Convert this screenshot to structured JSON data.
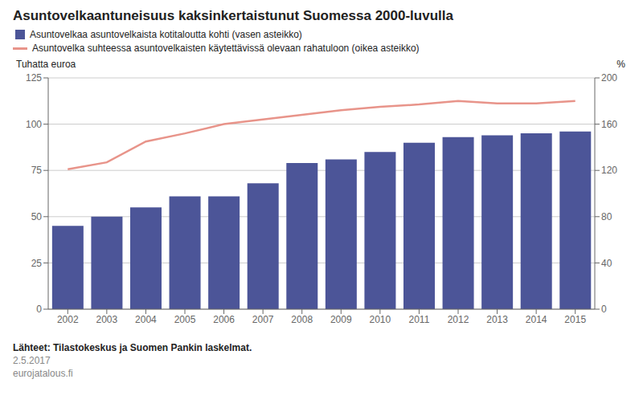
{
  "chart_data": {
    "type": "bar",
    "title": "Asuntovelkaantuneisuus kaksinkertaistunut Suomessa 2000-luvulla",
    "categories": [
      "2002",
      "2003",
      "2004",
      "2005",
      "2006",
      "2007",
      "2008",
      "2009",
      "2010",
      "2011",
      "2012",
      "2013",
      "2014",
      "2015"
    ],
    "series": [
      {
        "name": "Asuntovelkaa asuntovelkaista kotitaloutta kohti (vasen asteikko)",
        "type": "bar",
        "color": "#4C5598",
        "values": [
          45,
          50,
          55,
          61,
          61,
          68,
          79,
          81,
          85,
          90,
          93,
          94,
          95,
          96
        ]
      },
      {
        "name": "Asuntovelka suhteessa asuntovelkaisten käytettävissä olevaan rahatuloon (oikea asteikko)",
        "type": "line",
        "color": "#E8948A",
        "axis": "y2",
        "values": [
          121,
          127,
          145,
          152,
          160,
          164,
          168,
          172,
          175,
          177,
          180,
          178,
          178,
          180
        ]
      }
    ],
    "ylabel": "Tuhatta euroa",
    "y2label": "%",
    "ylim": [
      0,
      125
    ],
    "yticks": [
      0,
      25,
      50,
      75,
      100,
      125
    ],
    "y2lim": [
      0,
      200
    ],
    "y2ticks": [
      0,
      40,
      80,
      120,
      160,
      200
    ],
    "grid": true,
    "legend": "top",
    "annotations": [
      "Lähteet: Tilastokeskus ja Suomen Pankin laskelmat.",
      "2.5.2017",
      "eurojatalous.fi"
    ]
  }
}
